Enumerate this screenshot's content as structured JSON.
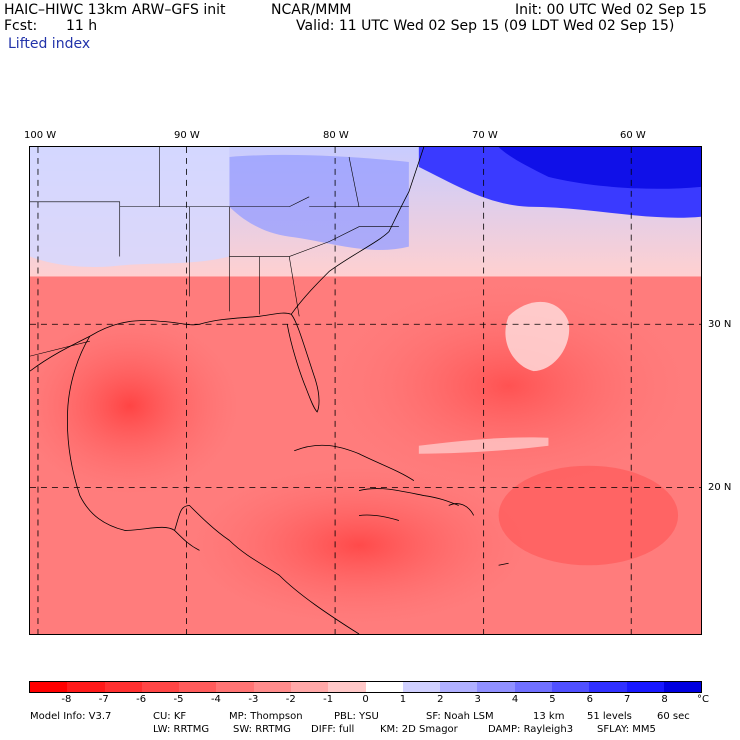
{
  "header": {
    "model": "HAIC–HIWC 13km ARW–GFS init",
    "org": "NCAR/MMM",
    "init": "Init: 00 UTC Wed 02 Sep 15",
    "fcst_label": "Fcst:",
    "fcst_value": "11 h",
    "valid": "Valid: 11 UTC Wed 02 Sep 15 (09 LDT Wed 02 Sep 15)",
    "field": "Lifted index"
  },
  "axes": {
    "lon_labels": [
      "100 W",
      "90 W",
      "80 W",
      "70 W",
      "60 W"
    ],
    "lat_labels": [
      "30 N",
      "20 N"
    ]
  },
  "colorbar": {
    "labels": [
      "-8",
      "-7",
      "-6",
      "-5",
      "-4",
      "-3",
      "-2",
      "-1",
      "0",
      "1",
      "2",
      "3",
      "4",
      "5",
      "6",
      "7",
      "8"
    ],
    "unit": "°C",
    "colors": [
      "#ff0000",
      "#ff1a1a",
      "#ff3030",
      "#ff4646",
      "#ff5c5c",
      "#ff7474",
      "#ff8c8c",
      "#ffa8a8",
      "#ffc8c8",
      "#ffffff",
      "#d0d0ff",
      "#b0b0ff",
      "#9090ff",
      "#7070ff",
      "#5050ff",
      "#3030ff",
      "#1818ff",
      "#0000e0"
    ]
  },
  "model_info": {
    "line1": {
      "model": "Model Info: V3.7",
      "cu": "CU: KF",
      "mp": "MP: Thompson",
      "pbl": "PBL: YSU",
      "sf": "SF: Noah LSM",
      "res": "13 km",
      "levels": "51 levels",
      "dt": "60 sec"
    },
    "line2": {
      "lw": "LW: RRTMG",
      "sw": "SW: RRTMG",
      "diff": "DIFF: full",
      "km": "KM: 2D Smagor",
      "damp": "DAMP: Rayleigh3",
      "sflay": "SFLAY: MM5"
    }
  }
}
